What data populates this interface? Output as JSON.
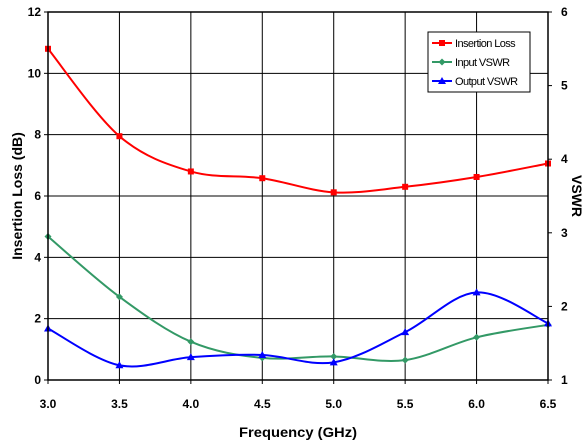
{
  "chart_data": {
    "type": "line",
    "xlabel": "Frequency (GHz)",
    "ylabel": "Insertion Loss (dB)",
    "y2label": "VSWR",
    "xlim": [
      3.0,
      6.5
    ],
    "ylim": [
      0,
      12
    ],
    "y2lim": [
      1,
      6
    ],
    "x_ticks": [
      "3.0",
      "3.5",
      "4.0",
      "4.5",
      "5.0",
      "5.5",
      "6.0",
      "6.5"
    ],
    "y_ticks": [
      "0",
      "2",
      "4",
      "6",
      "8",
      "10",
      "12"
    ],
    "y2_ticks": [
      "1",
      "2",
      "3",
      "4",
      "5",
      "6"
    ],
    "grid": true,
    "legend_position": "top-right",
    "x": [
      3.0,
      3.5,
      4.0,
      4.5,
      5.0,
      5.5,
      6.0,
      6.5
    ],
    "series": [
      {
        "name": "Insertion Loss",
        "axis": "left",
        "color": "#ff0000",
        "marker": "square",
        "values": [
          10.8,
          7.95,
          6.8,
          6.58,
          6.12,
          6.3,
          6.62,
          7.06
        ]
      },
      {
        "name": "Input VSWR",
        "axis": "right",
        "color": "#339966",
        "marker": "diamond",
        "values": [
          2.95,
          2.13,
          1.52,
          1.3,
          1.32,
          1.27,
          1.58,
          1.75
        ]
      },
      {
        "name": "Output VSWR",
        "axis": "right",
        "color": "#0000ff",
        "marker": "triangle",
        "values": [
          1.7,
          1.2,
          1.31,
          1.34,
          1.24,
          1.65,
          2.19,
          1.77
        ]
      }
    ]
  }
}
